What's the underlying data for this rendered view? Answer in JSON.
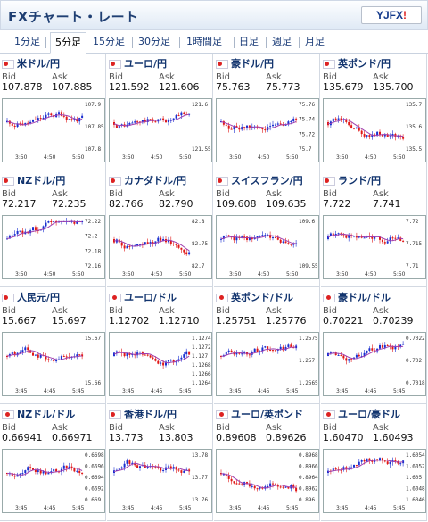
{
  "header": {
    "title": "FXチャート・レート",
    "logo_text_a": "YJFX",
    "logo_text_b": "!"
  },
  "tabs": [
    {
      "label": "1分足"
    },
    {
      "label": "5分足",
      "active": true
    },
    {
      "label": "15分足"
    },
    {
      "label": "30分足"
    },
    {
      "label": "1時間足"
    },
    {
      "label": "日足"
    },
    {
      "label": "週足"
    },
    {
      "label": "月足"
    }
  ],
  "labels": {
    "bid": "Bid",
    "ask": "Ask"
  },
  "pairs": [
    {
      "name": "米ドル/円",
      "bid": "107.878",
      "ask": "107.885",
      "ticks": [
        "107.9",
        "107.85",
        "107.8"
      ],
      "x": [
        "3:50",
        "4:50",
        "5:50"
      ]
    },
    {
      "name": "ユーロ/円",
      "bid": "121.592",
      "ask": "121.606",
      "ticks": [
        "121.6",
        "121.55"
      ],
      "x": [
        "3:50",
        "4:50",
        "5:50"
      ]
    },
    {
      "name": "豪ドル/円",
      "bid": "75.763",
      "ask": "75.773",
      "ticks": [
        "75.76",
        "75.74",
        "75.72",
        "75.7"
      ],
      "x": [
        "3:50",
        "4:50",
        "5:50"
      ]
    },
    {
      "name": "英ポンド/円",
      "bid": "135.679",
      "ask": "135.700",
      "ticks": [
        "135.7",
        "135.6",
        "135.5"
      ],
      "x": [
        "3:50",
        "4:50",
        "5:50"
      ]
    },
    {
      "name": "NZドル/円",
      "bid": "72.217",
      "ask": "72.235",
      "ticks": [
        "72.22",
        "72.2",
        "72.18",
        "72.16"
      ],
      "x": [
        "3:50",
        "4:50",
        "5:50"
      ]
    },
    {
      "name": "カナダドル/円",
      "bid": "82.766",
      "ask": "82.790",
      "ticks": [
        "82.8",
        "82.75",
        "82.7"
      ],
      "x": [
        "3:50",
        "4:50",
        "5:50"
      ]
    },
    {
      "name": "スイスフラン/円",
      "bid": "109.608",
      "ask": "109.635",
      "ticks": [
        "109.6",
        "109.55"
      ],
      "x": [
        "3:50",
        "4:50",
        "5:50"
      ]
    },
    {
      "name": "ランド/円",
      "bid": "7.722",
      "ask": "7.741",
      "ticks": [
        "7.72",
        "7.715",
        "7.71"
      ],
      "x": [
        "3:50",
        "4:50",
        "5:50"
      ]
    },
    {
      "name": "人民元/円",
      "bid": "15.667",
      "ask": "15.697",
      "ticks": [
        "15.67",
        "15.66"
      ],
      "x": [
        "3:45",
        "4:45",
        "5:45"
      ]
    },
    {
      "name": "ユーロ/ドル",
      "bid": "1.12702",
      "ask": "1.12710",
      "ticks": [
        "1.1274",
        "1.1272",
        "1.127",
        "1.1268",
        "1.1266",
        "1.1264"
      ],
      "x": [
        "3:45",
        "4:45",
        "5:45"
      ]
    },
    {
      "name": "英ポンド/ドル",
      "bid": "1.25751",
      "ask": "1.25776",
      "ticks": [
        "1.2575",
        "1.257",
        "1.2565"
      ],
      "x": [
        "3:45",
        "4:45",
        "5:45"
      ]
    },
    {
      "name": "豪ドル/ドル",
      "bid": "0.70221",
      "ask": "0.70239",
      "ticks": [
        "0.7022",
        "0.702",
        "0.7018"
      ],
      "x": [
        "3:45",
        "4:45",
        "5:45"
      ]
    },
    {
      "name": "NZドル/ドル",
      "bid": "0.66941",
      "ask": "0.66971",
      "ticks": [
        "0.6698",
        "0.6696",
        "0.6694",
        "0.6692",
        "0.669"
      ],
      "x": [
        "3:45",
        "4:45",
        "5:45"
      ]
    },
    {
      "name": "香港ドル/円",
      "bid": "13.773",
      "ask": "13.803",
      "ticks": [
        "13.78",
        "13.77",
        "13.76"
      ],
      "x": [
        "3:45",
        "4:45",
        "5:45"
      ]
    },
    {
      "name": "ユーロ/英ポンド",
      "bid": "0.89608",
      "ask": "0.89626",
      "ticks": [
        "0.8968",
        "0.8966",
        "0.8964",
        "0.8962",
        "0.896"
      ],
      "x": [
        "3:45",
        "4:45",
        "5:45"
      ]
    },
    {
      "name": "ユーロ/豪ドル",
      "bid": "1.60470",
      "ask": "1.60493",
      "ticks": [
        "1.6054",
        "1.6052",
        "1.605",
        "1.6048",
        "1.6046"
      ],
      "x": [
        "3:45",
        "4:45",
        "5:45"
      ]
    }
  ],
  "colors": {
    "up": "#1a2fd0",
    "down": "#e01818",
    "ma": "#a040b0",
    "title": "#12346e"
  }
}
